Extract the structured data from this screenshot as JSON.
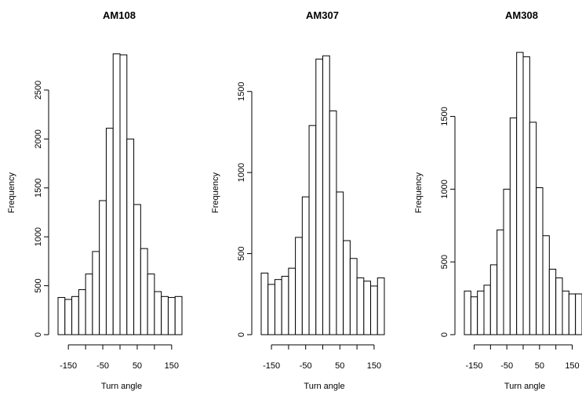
{
  "chart_data": [
    {
      "type": "bar",
      "title": "AM108",
      "xlabel": "Turn angle",
      "ylabel": "Frequency",
      "bin_edges": [
        -180,
        -160,
        -140,
        -120,
        -100,
        -80,
        -60,
        -40,
        -20,
        0,
        20,
        40,
        60,
        80,
        100,
        120,
        140,
        160,
        180
      ],
      "values": [
        380,
        360,
        390,
        460,
        620,
        850,
        1370,
        2110,
        2870,
        2860,
        2000,
        1330,
        880,
        620,
        440,
        390,
        380,
        390
      ],
      "xticks": [
        -150,
        -100,
        -50,
        0,
        50,
        100,
        150
      ],
      "xtick_labels": [
        "-150",
        "",
        "-50",
        "",
        "50",
        "",
        "150"
      ],
      "yticks": [
        0,
        500,
        1000,
        1500,
        2000,
        2500
      ],
      "ylim": [
        0,
        2900
      ],
      "grid": false
    },
    {
      "type": "bar",
      "title": "AM307",
      "xlabel": "Turn angle",
      "ylabel": "Frequency",
      "bin_edges": [
        -180,
        -160,
        -140,
        -120,
        -100,
        -80,
        -60,
        -40,
        -20,
        0,
        20,
        40,
        60,
        80,
        100,
        120,
        140,
        160,
        180
      ],
      "values": [
        380,
        310,
        340,
        360,
        410,
        600,
        850,
        1290,
        1700,
        1720,
        1380,
        880,
        580,
        470,
        350,
        330,
        300,
        350
      ],
      "xticks": [
        -150,
        -100,
        -50,
        0,
        50,
        100,
        150
      ],
      "xtick_labels": [
        "-150",
        "",
        "-50",
        "",
        "50",
        "",
        "150"
      ],
      "yticks": [
        0,
        500,
        1000,
        1500
      ],
      "ylim": [
        0,
        1750
      ],
      "grid": false
    },
    {
      "type": "bar",
      "title": "AM308",
      "xlabel": "Turn angle",
      "ylabel": "Frequency",
      "bin_edges": [
        -180,
        -160,
        -140,
        -120,
        -100,
        -80,
        -60,
        -40,
        -20,
        0,
        20,
        40,
        60,
        80,
        100,
        120,
        140,
        160,
        180
      ],
      "values": [
        300,
        260,
        300,
        340,
        480,
        720,
        1000,
        1490,
        1940,
        1910,
        1460,
        1010,
        680,
        450,
        390,
        300,
        280,
        280
      ],
      "xticks": [
        -150,
        -100,
        -50,
        0,
        50,
        100,
        150
      ],
      "xtick_labels": [
        "-150",
        "",
        "-50",
        "",
        "50",
        "",
        "150"
      ],
      "yticks": [
        0,
        500,
        1000,
        1500
      ],
      "ylim": [
        0,
        1950
      ],
      "grid": false
    }
  ]
}
